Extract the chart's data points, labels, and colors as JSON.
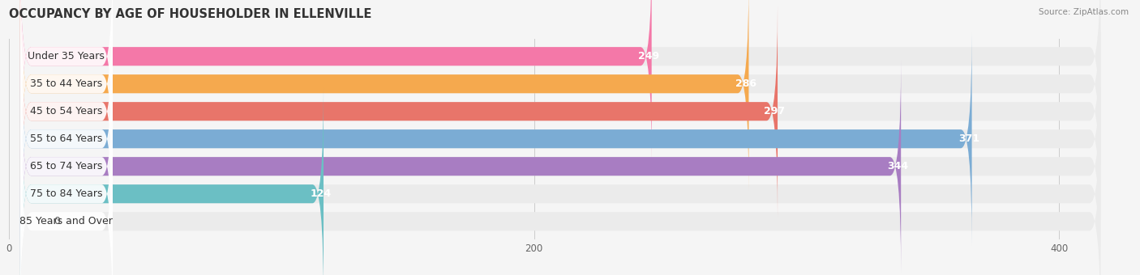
{
  "title": "OCCUPANCY BY AGE OF HOUSEHOLDER IN ELLENVILLE",
  "source": "Source: ZipAtlas.com",
  "categories": [
    "Under 35 Years",
    "35 to 44 Years",
    "45 to 54 Years",
    "55 to 64 Years",
    "65 to 74 Years",
    "75 to 84 Years",
    "85 Years and Over"
  ],
  "values": [
    249,
    286,
    297,
    371,
    344,
    124,
    0
  ],
  "bar_colors": [
    "#F478A8",
    "#F5A94E",
    "#E8756A",
    "#7BACD4",
    "#A87DC2",
    "#6BBFC4",
    "#B0B8E8"
  ],
  "bar_bg_color": "#ebebeb",
  "bar_white_label_bg": "#ffffff",
  "xlim": [
    0,
    420
  ],
  "title_fontsize": 10.5,
  "label_fontsize": 9,
  "value_fontsize": 9,
  "bar_height": 0.68,
  "background_color": "#f5f5f5",
  "xticks": [
    0,
    200,
    400
  ]
}
